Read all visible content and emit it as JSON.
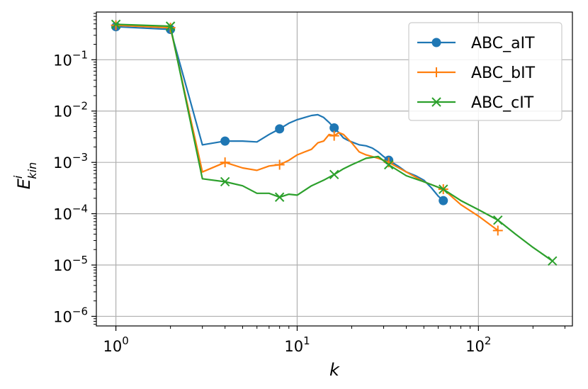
{
  "chart_data": {
    "type": "line",
    "xscale": "log",
    "yscale": "log",
    "xlim": [
      0.78,
      330
    ],
    "ylim": [
      6.5e-07,
      0.85
    ],
    "grid": true,
    "legend_position": "top-right",
    "xlabel": "k",
    "ylabel": {
      "base": "E",
      "sup": "i",
      "sub": "kin"
    },
    "x_ticks": [
      {
        "value": 1,
        "base": "10",
        "exp": "0"
      },
      {
        "value": 10,
        "base": "10",
        "exp": "1"
      },
      {
        "value": 100,
        "base": "10",
        "exp": "2"
      }
    ],
    "y_ticks": [
      {
        "value": 1e-06,
        "base": "10",
        "exp": "−6"
      },
      {
        "value": 1e-05,
        "base": "10",
        "exp": "−5"
      },
      {
        "value": 0.0001,
        "base": "10",
        "exp": "−4"
      },
      {
        "value": 0.001,
        "base": "10",
        "exp": "−3"
      },
      {
        "value": 0.01,
        "base": "10",
        "exp": "−2"
      },
      {
        "value": 0.1,
        "base": "10",
        "exp": "−1"
      }
    ],
    "series": [
      {
        "name": "ABC_aIT",
        "color": "#1f77b4",
        "marker": "circle",
        "x": [
          1,
          2,
          3,
          4,
          5,
          6,
          7,
          8,
          9,
          10,
          11,
          12,
          13,
          14,
          15,
          16,
          17,
          18,
          19,
          20,
          22,
          24,
          26,
          28,
          30,
          32,
          36,
          40,
          45,
          50,
          55,
          60,
          64
        ],
        "y": [
          0.44,
          0.39,
          0.0022,
          0.0026,
          0.0026,
          0.0025,
          0.0035,
          0.0045,
          0.0058,
          0.0068,
          0.0075,
          0.0082,
          0.0085,
          0.0075,
          0.006,
          0.0047,
          0.0038,
          0.003,
          0.0027,
          0.0025,
          0.0022,
          0.0021,
          0.0019,
          0.0016,
          0.0013,
          0.0011,
          0.00085,
          0.00065,
          0.00055,
          0.00045,
          0.00032,
          0.00022,
          0.00018
        ],
        "marker_x": [
          1,
          2,
          4,
          8,
          16,
          32,
          64
        ],
        "marker_y": [
          0.44,
          0.39,
          0.0026,
          0.0045,
          0.0047,
          0.0011,
          0.00018
        ]
      },
      {
        "name": "ABC_bIT",
        "color": "#ff7f0e",
        "marker": "plus",
        "x": [
          1,
          2,
          3,
          4,
          5,
          6,
          7,
          8,
          9,
          10,
          11,
          12,
          13,
          14,
          15,
          16,
          17,
          18,
          20,
          22,
          24,
          26,
          28,
          30,
          32,
          40,
          50,
          64,
          80,
          100,
          128
        ],
        "y": [
          0.47,
          0.42,
          0.00065,
          0.001,
          0.00078,
          0.0007,
          0.00085,
          0.0009,
          0.0011,
          0.0014,
          0.0016,
          0.0018,
          0.0024,
          0.0026,
          0.0035,
          0.0033,
          0.0038,
          0.0035,
          0.0024,
          0.0016,
          0.0014,
          0.0013,
          0.0012,
          0.0011,
          0.001,
          0.00065,
          0.00042,
          0.0003,
          0.00015,
          9e-05,
          4.7e-05
        ],
        "marker_x": [
          1,
          2,
          4,
          8,
          16,
          32,
          64,
          128
        ],
        "marker_y": [
          0.47,
          0.42,
          0.001,
          0.0009,
          0.0033,
          0.001,
          0.0003,
          4.7e-05
        ]
      },
      {
        "name": "ABC_cIT",
        "color": "#2ca02c",
        "marker": "x",
        "x": [
          1,
          2,
          3,
          4,
          5,
          6,
          7,
          8,
          9,
          10,
          12,
          14,
          16,
          18,
          20,
          24,
          28,
          32,
          40,
          50,
          64,
          80,
          100,
          128,
          160,
          200,
          256
        ],
        "y": [
          0.49,
          0.45,
          0.00048,
          0.00042,
          0.00035,
          0.00025,
          0.00025,
          0.00021,
          0.00024,
          0.00023,
          0.00035,
          0.00045,
          0.00058,
          0.00075,
          0.0009,
          0.0012,
          0.0013,
          0.0009,
          0.00055,
          0.00042,
          0.0003,
          0.00018,
          0.00012,
          7.5e-05,
          4e-05,
          2.2e-05,
          1.2e-05
        ],
        "marker_x": [
          1,
          2,
          4,
          8,
          16,
          32,
          64,
          128,
          256
        ],
        "marker_y": [
          0.49,
          0.45,
          0.00042,
          0.00021,
          0.00058,
          0.0009,
          0.0003,
          7.5e-05,
          1.2e-05
        ]
      }
    ]
  }
}
